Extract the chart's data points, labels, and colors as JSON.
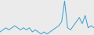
{
  "values": [
    3,
    4,
    5,
    4,
    5,
    6,
    5,
    4,
    5,
    4,
    5,
    3,
    4,
    3,
    2,
    3,
    2,
    3,
    4,
    5,
    6,
    8,
    18,
    5,
    4,
    6,
    8,
    10,
    7,
    11,
    5,
    6,
    5
  ],
  "line_color": "#3a9fd0",
  "background_color": "#ebebeb",
  "linewidth": 0.7
}
